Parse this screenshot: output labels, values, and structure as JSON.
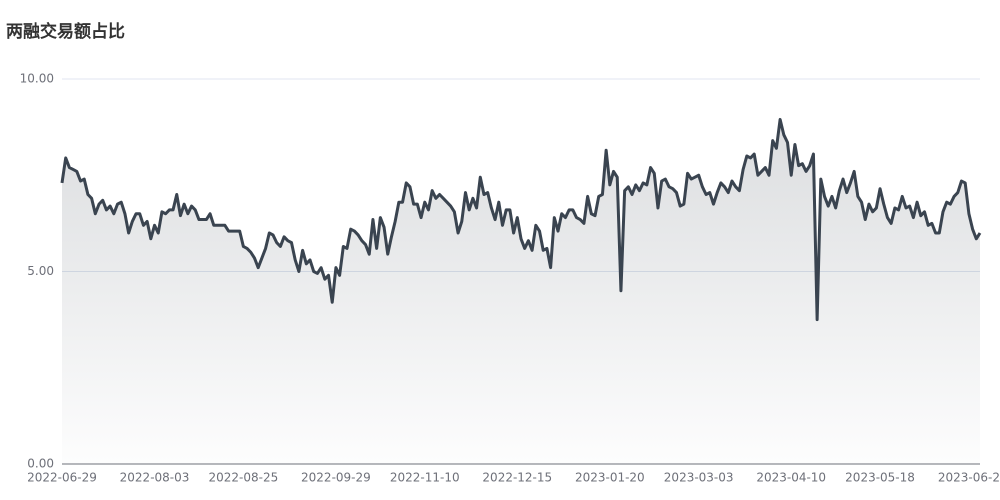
{
  "chart_data": {
    "type": "line",
    "title": "两融交易额占比",
    "categories": [
      "2022-06-29",
      null,
      null,
      null,
      null,
      null,
      null,
      null,
      null,
      null,
      null,
      null,
      null,
      null,
      null,
      null,
      null,
      null,
      null,
      null,
      null,
      null,
      null,
      null,
      null,
      "2022-08-03",
      null,
      null,
      null,
      null,
      null,
      null,
      null,
      null,
      null,
      null,
      null,
      null,
      null,
      null,
      null,
      null,
      null,
      null,
      null,
      null,
      null,
      null,
      null,
      "2022-08-25",
      null,
      null,
      null,
      null,
      null,
      null,
      null,
      null,
      null,
      null,
      null,
      null,
      null,
      null,
      null,
      null,
      null,
      null,
      null,
      null,
      null,
      null,
      null,
      null,
      "2022-09-29",
      null,
      null,
      null,
      null,
      null,
      null,
      null,
      null,
      null,
      null,
      null,
      null,
      null,
      null,
      null,
      null,
      null,
      null,
      null,
      null,
      null,
      null,
      null,
      "2022-11-10",
      null,
      null,
      null,
      null,
      null,
      null,
      null,
      null,
      null,
      null,
      null,
      null,
      null,
      null,
      null,
      null,
      null,
      null,
      null,
      null,
      null,
      null,
      null,
      null,
      "2022-12-15",
      null,
      null,
      null,
      null,
      null,
      null,
      null,
      null,
      null,
      null,
      null,
      null,
      null,
      null,
      null,
      null,
      null,
      null,
      null,
      null,
      null,
      null,
      null,
      null,
      "2023-01-20",
      null,
      null,
      null,
      null,
      null,
      null,
      null,
      null,
      null,
      null,
      null,
      null,
      null,
      null,
      null,
      null,
      null,
      null,
      null,
      null,
      null,
      null,
      null,
      "2023-03-03",
      null,
      null,
      null,
      null,
      null,
      null,
      null,
      null,
      null,
      null,
      null,
      null,
      null,
      null,
      null,
      null,
      null,
      null,
      null,
      null,
      null,
      null,
      null,
      null,
      "2023-04-10",
      null,
      null,
      null,
      null,
      null,
      null,
      null,
      null,
      null,
      null,
      null,
      null,
      null,
      null,
      null,
      null,
      null,
      null,
      null,
      null,
      null,
      null,
      null,
      "2023-05-18",
      null,
      null,
      null,
      null,
      null,
      null,
      null,
      null,
      null,
      null,
      null,
      null,
      null,
      null,
      null,
      null,
      null,
      null,
      null,
      null,
      null,
      null,
      null,
      null,
      "2023-06-2",
      null,
      null
    ],
    "values": [
      7.3,
      7.95,
      7.7,
      7.65,
      7.6,
      7.35,
      7.4,
      7.0,
      6.9,
      6.5,
      6.75,
      6.85,
      6.6,
      6.7,
      6.5,
      6.75,
      6.8,
      6.5,
      6.0,
      6.3,
      6.5,
      6.5,
      6.2,
      6.3,
      5.85,
      6.2,
      6.0,
      6.55,
      6.5,
      6.6,
      6.6,
      7.0,
      6.45,
      6.75,
      6.5,
      6.7,
      6.6,
      6.35,
      6.35,
      6.35,
      6.5,
      6.2,
      6.2,
      6.2,
      6.2,
      6.05,
      6.05,
      6.05,
      6.05,
      5.65,
      5.6,
      5.5,
      5.35,
      5.1,
      5.35,
      5.6,
      6.0,
      5.95,
      5.75,
      5.65,
      5.9,
      5.8,
      5.75,
      5.3,
      5.0,
      5.55,
      5.2,
      5.3,
      5.0,
      4.95,
      5.1,
      4.8,
      4.9,
      4.2,
      5.1,
      4.9,
      5.65,
      5.6,
      6.1,
      6.05,
      5.95,
      5.8,
      5.7,
      5.45,
      6.35,
      5.6,
      6.4,
      6.15,
      5.45,
      5.9,
      6.3,
      6.8,
      6.8,
      7.3,
      7.2,
      6.75,
      6.75,
      6.4,
      6.8,
      6.6,
      7.1,
      6.9,
      7.0,
      6.9,
      6.8,
      6.7,
      6.55,
      6.0,
      6.3,
      7.05,
      6.6,
      6.9,
      6.65,
      7.45,
      7.0,
      7.05,
      6.65,
      6.35,
      6.8,
      6.2,
      6.6,
      6.6,
      6.0,
      6.4,
      5.85,
      5.6,
      5.8,
      5.55,
      6.2,
      6.05,
      5.55,
      5.6,
      5.1,
      6.4,
      6.05,
      6.5,
      6.4,
      6.6,
      6.6,
      6.4,
      6.35,
      6.25,
      6.95,
      6.5,
      6.45,
      6.95,
      7.0,
      8.15,
      7.25,
      7.6,
      7.45,
      4.5,
      7.1,
      7.2,
      7.0,
      7.25,
      7.1,
      7.3,
      7.25,
      7.7,
      7.55,
      6.65,
      7.35,
      7.4,
      7.2,
      7.15,
      7.05,
      6.7,
      6.75,
      7.55,
      7.4,
      7.45,
      7.5,
      7.2,
      7.0,
      7.05,
      6.75,
      7.05,
      7.3,
      7.2,
      7.05,
      7.35,
      7.2,
      7.1,
      7.65,
      8.0,
      7.95,
      8.05,
      7.5,
      7.6,
      7.7,
      7.5,
      8.4,
      8.2,
      8.95,
      8.55,
      8.35,
      7.5,
      8.3,
      7.75,
      7.8,
      7.6,
      7.75,
      8.05,
      3.75,
      7.4,
      6.95,
      6.7,
      6.95,
      6.65,
      7.1,
      7.4,
      7.05,
      7.3,
      7.6,
      6.95,
      6.8,
      6.35,
      6.75,
      6.55,
      6.65,
      7.15,
      6.75,
      6.4,
      6.25,
      6.65,
      6.6,
      6.95,
      6.65,
      6.7,
      6.4,
      6.8,
      6.45,
      6.55,
      6.2,
      6.25,
      6.0,
      6.0,
      6.55,
      6.8,
      6.75,
      6.95,
      7.05,
      7.35,
      7.3,
      6.5,
      6.1,
      5.85,
      6.0
    ],
    "color": "#3a4450",
    "ylim": [
      0,
      10
    ],
    "yticks": [
      {
        "value": 0,
        "label": "0.00"
      },
      {
        "value": 5,
        "label": "5.00"
      },
      {
        "value": 10,
        "label": "10.00"
      }
    ],
    "grid": true
  }
}
